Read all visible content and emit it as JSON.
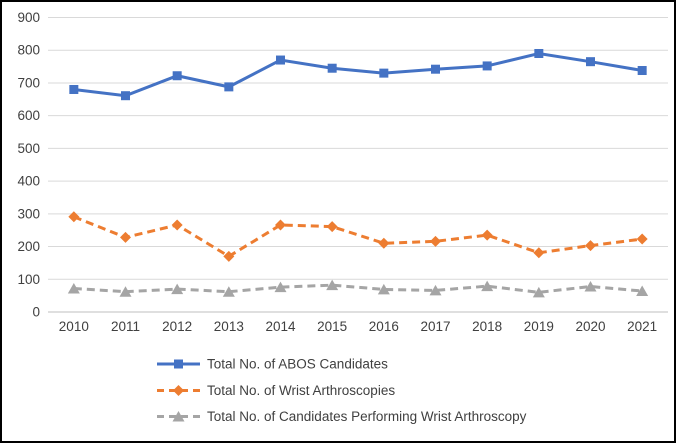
{
  "chart_data": {
    "type": "line",
    "title": "",
    "xlabel": "",
    "ylabel": "",
    "categories": [
      "2010",
      "2011",
      "2012",
      "2013",
      "2014",
      "2015",
      "2016",
      "2017",
      "2018",
      "2019",
      "2020",
      "2021"
    ],
    "series": [
      {
        "name": "Total No. of ABOS Candidates",
        "color": "#4472C4",
        "line_style": "solid",
        "marker": "square",
        "values": [
          680,
          661,
          722,
          688,
          770,
          745,
          730,
          742,
          752,
          790,
          765,
          738
        ]
      },
      {
        "name": "Total No. of Wrist Arthroscopies",
        "color": "#ED7D31",
        "line_style": "dashed",
        "marker": "diamond",
        "values": [
          291,
          228,
          266,
          170,
          266,
          261,
          210,
          216,
          235,
          181,
          203,
          223
        ]
      },
      {
        "name": "Total No. of Candidates Performing Wrist Arthroscopy",
        "color": "#A5A5A5",
        "line_style": "dashed",
        "marker": "triangle",
        "values": [
          72,
          62,
          70,
          62,
          76,
          82,
          69,
          66,
          79,
          60,
          78,
          64
        ]
      }
    ],
    "y_axis": {
      "min": 0,
      "max": 900,
      "step": 100,
      "ticks": [
        900,
        800,
        700,
        600,
        500,
        400,
        300,
        200,
        100,
        0
      ]
    },
    "grid": true,
    "legend_position": "bottom-left",
    "style": {
      "gridline_color": "#D9D9D9",
      "axis_line_color": "#BFBFBF",
      "tick_text_color": "#404040",
      "legend_text_color": "#404040",
      "background_color": "#FFFFFF",
      "frame_border_color": "#000000"
    }
  }
}
